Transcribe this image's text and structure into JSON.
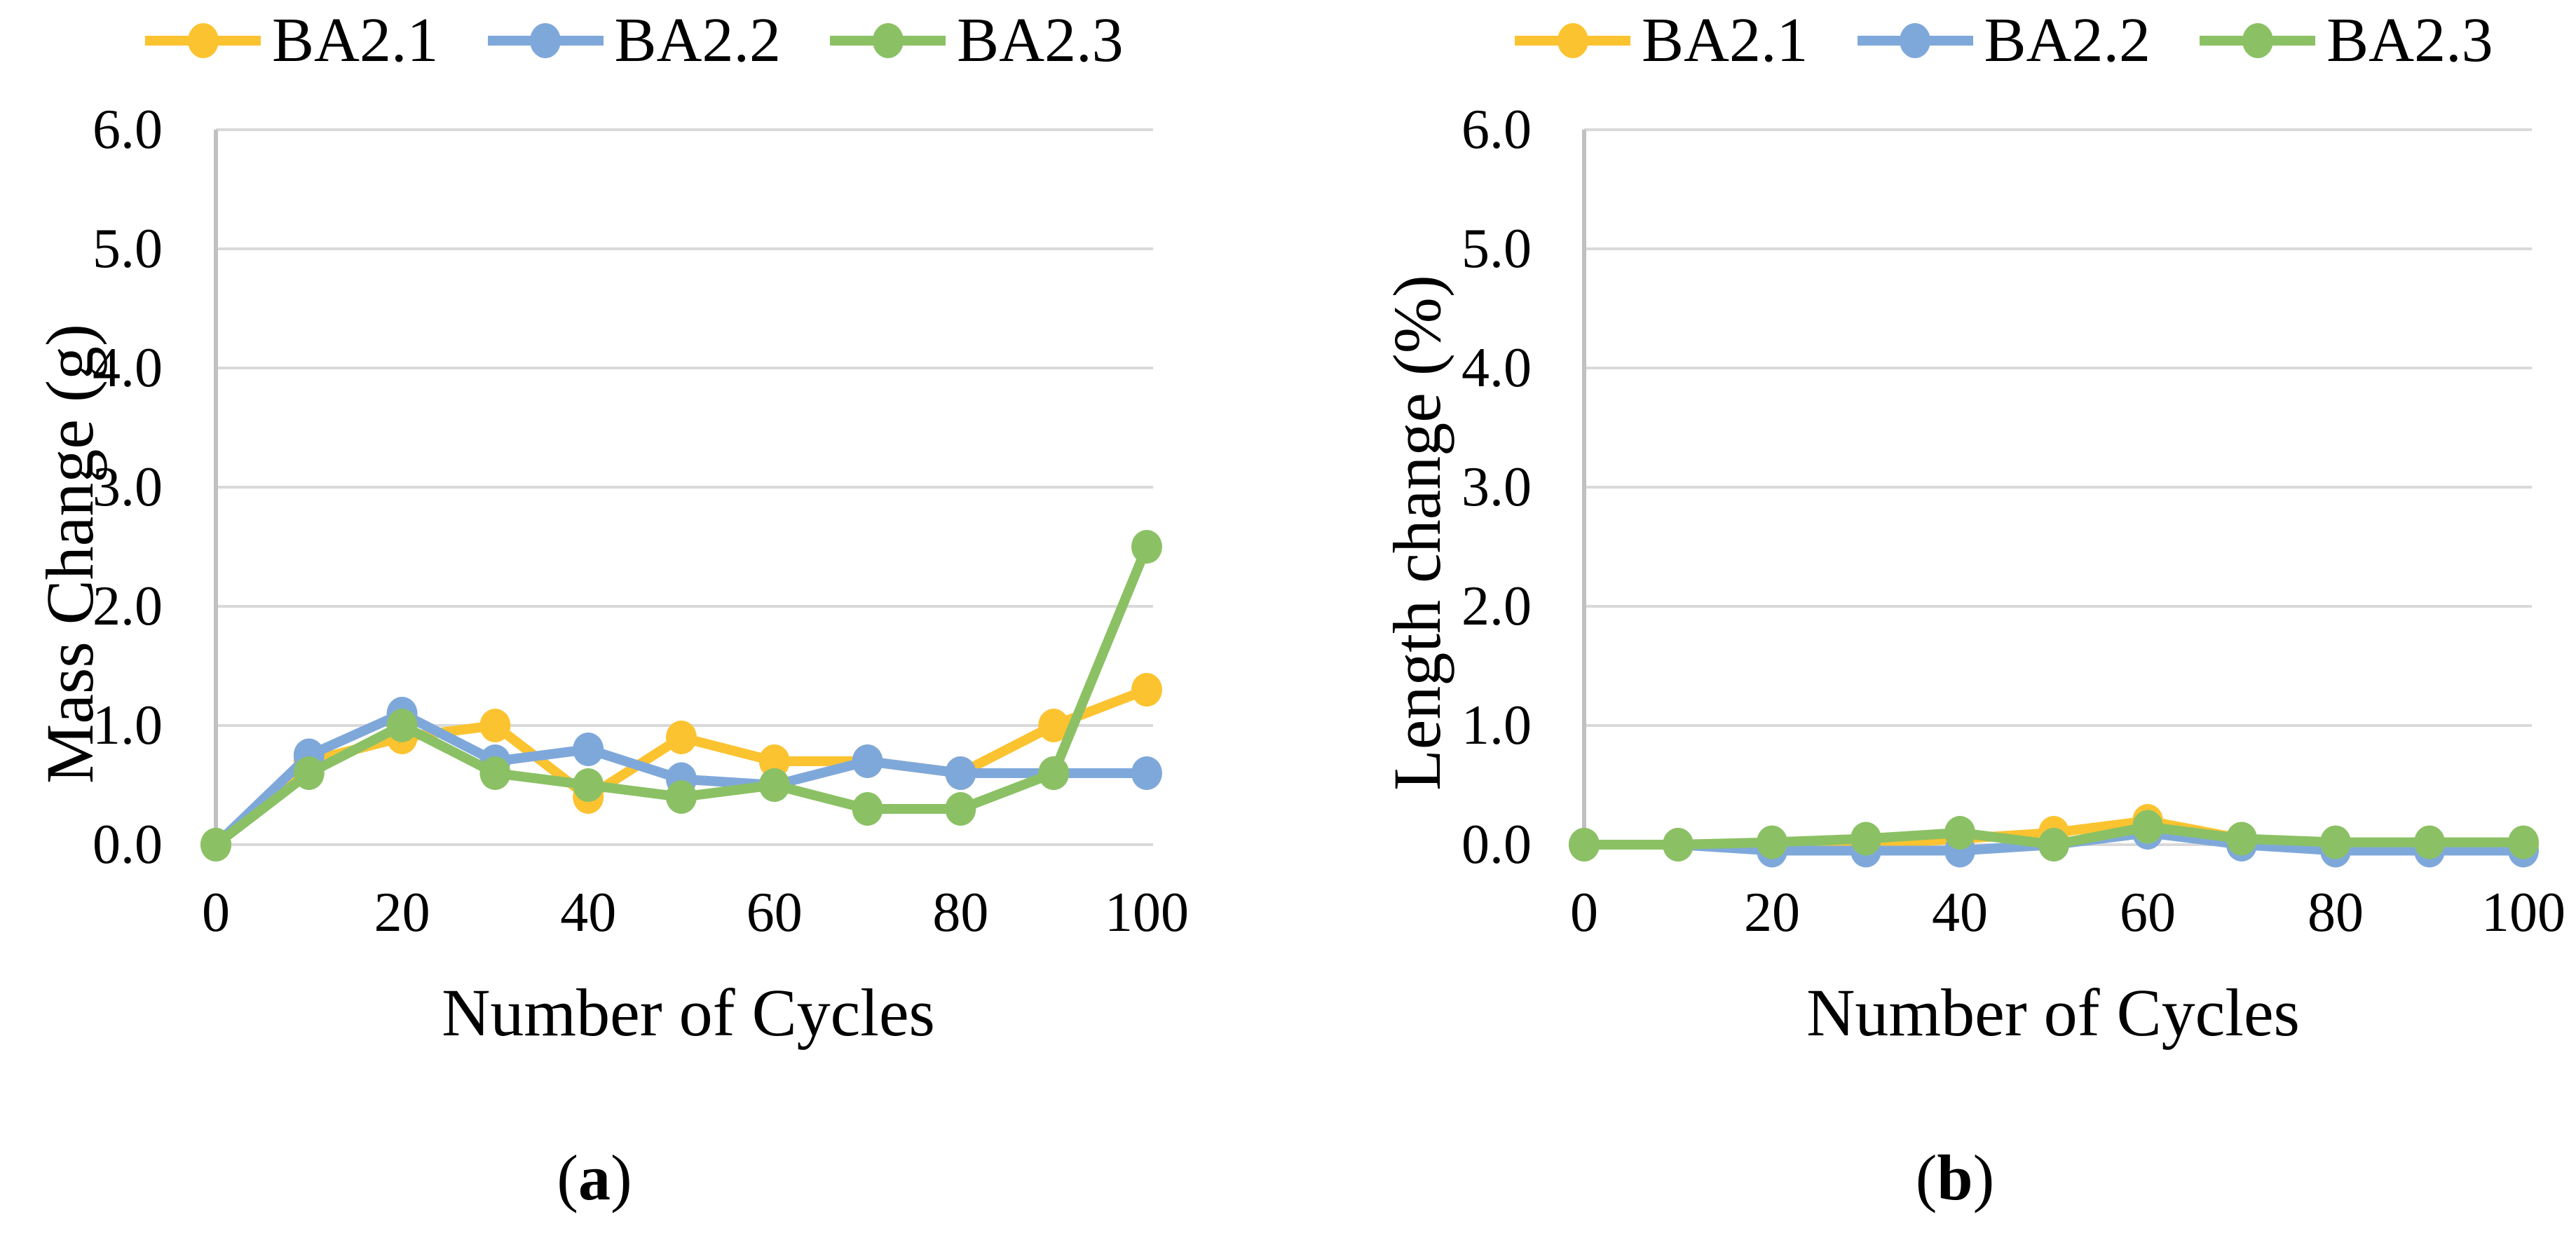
{
  "colors": {
    "gridline": "#D9D9D9",
    "axis": "#C0C0C0",
    "series_gold": "#FCC330",
    "series_blue": "#7FA8DA",
    "series_green": "#8BC164"
  },
  "ui": {
    "paren_open": "(",
    "paren_close": ")"
  },
  "chart_data": [
    {
      "type": "line",
      "title": "",
      "caption": "a",
      "xlabel": "Number of Cycles",
      "ylabel": "Mass Change (g)",
      "xlim": [
        0,
        100
      ],
      "ylim": [
        0,
        6
      ],
      "grid": "horizontal",
      "legend_position": "top",
      "x": [
        0,
        10,
        20,
        30,
        40,
        50,
        60,
        70,
        80,
        90,
        100
      ],
      "xticks": [
        "0",
        "20",
        "40",
        "60",
        "80",
        "100"
      ],
      "xtick_values": [
        0,
        20,
        40,
        60,
        80,
        100
      ],
      "yticks": [
        "0.0",
        "1.0",
        "2.0",
        "3.0",
        "4.0",
        "5.0",
        "6.0"
      ],
      "series": [
        {
          "name": "BA2.1",
          "color": "#FCC330",
          "values": [
            0.0,
            0.7,
            0.9,
            1.0,
            0.4,
            0.9,
            0.7,
            0.7,
            0.6,
            1.0,
            1.3
          ]
        },
        {
          "name": "BA2.2",
          "color": "#7FA8DA",
          "values": [
            0.0,
            0.75,
            1.1,
            0.7,
            0.8,
            0.55,
            0.5,
            0.7,
            0.6,
            0.6,
            0.6
          ]
        },
        {
          "name": "BA2.3",
          "color": "#8BC164",
          "values": [
            0.0,
            0.6,
            1.0,
            0.6,
            0.5,
            0.4,
            0.5,
            0.3,
            0.3,
            0.6,
            2.5
          ]
        }
      ]
    },
    {
      "type": "line",
      "title": "",
      "caption": "b",
      "xlabel": "Number of Cycles",
      "ylabel": "Length change (%)",
      "xlim": [
        0,
        100
      ],
      "ylim": [
        0,
        6
      ],
      "grid": "horizontal",
      "legend_position": "top",
      "x": [
        0,
        10,
        20,
        30,
        40,
        50,
        60,
        70,
        80,
        90,
        100
      ],
      "xticks": [
        "0",
        "20",
        "40",
        "60",
        "80",
        "100"
      ],
      "xtick_values": [
        0,
        20,
        40,
        60,
        80,
        100
      ],
      "yticks": [
        "0.0",
        "1.0",
        "2.0",
        "3.0",
        "4.0",
        "5.0",
        "6.0"
      ],
      "series": [
        {
          "name": "BA2.1",
          "color": "#FCC330",
          "values": [
            0.0,
            0.0,
            0.0,
            0.0,
            0.05,
            0.1,
            0.2,
            0.05,
            0.0,
            0.0,
            0.0
          ]
        },
        {
          "name": "BA2.2",
          "color": "#7FA8DA",
          "values": [
            0.0,
            0.0,
            -0.05,
            -0.05,
            -0.05,
            0.0,
            0.1,
            0.0,
            -0.05,
            -0.05,
            -0.05
          ]
        },
        {
          "name": "BA2.3",
          "color": "#8BC164",
          "values": [
            0.0,
            0.0,
            0.02,
            0.05,
            0.1,
            0.0,
            0.15,
            0.05,
            0.02,
            0.02,
            0.02
          ]
        }
      ]
    }
  ]
}
